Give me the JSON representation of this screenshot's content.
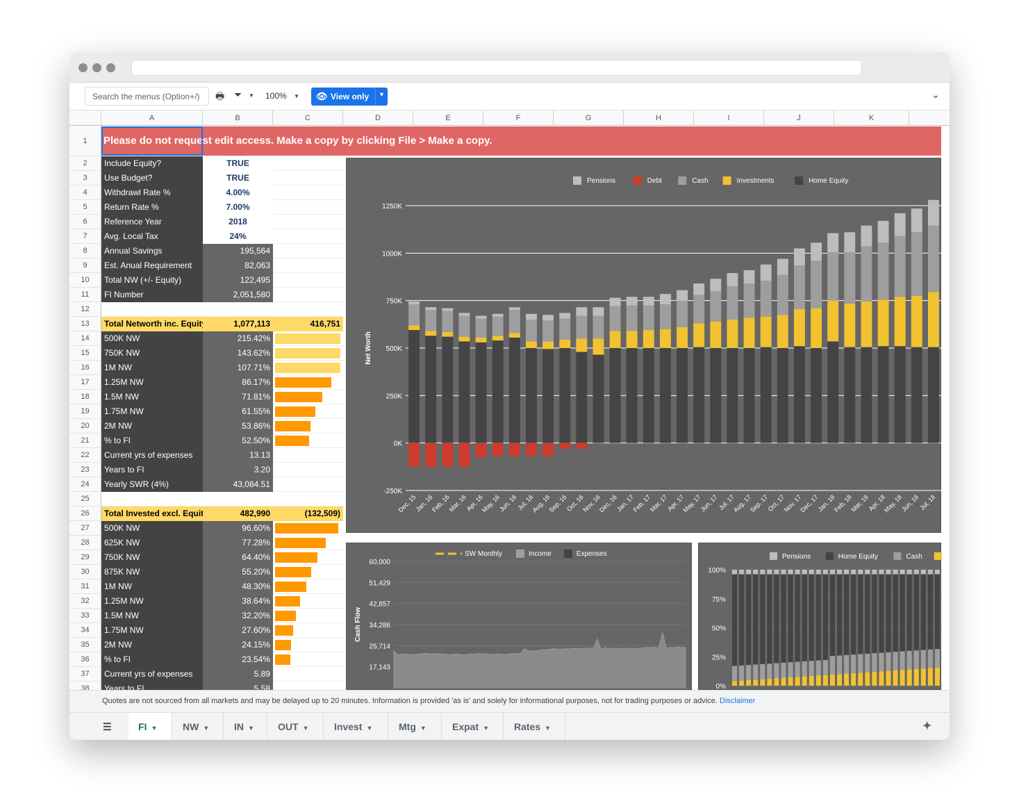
{
  "toolbar": {
    "search_placeholder": "Search the menus (Option+/)",
    "zoom": "100%",
    "view_only": "View only"
  },
  "columns": [
    "A",
    "B",
    "C",
    "D",
    "E",
    "F",
    "G",
    "H",
    "I",
    "J",
    "K"
  ],
  "banner": "Please do not request edit access. Make a copy by clicking File > Make a copy.",
  "rows": [
    {
      "n": "1"
    },
    {
      "n": "2",
      "label": "Include Equity?",
      "value": "TRUE"
    },
    {
      "n": "3",
      "label": "Use Budget?",
      "value": "TRUE"
    },
    {
      "n": "4",
      "label": "Withdrawl Rate %",
      "value": "4.00%"
    },
    {
      "n": "5",
      "label": "Return Rate %",
      "value": "7.00%"
    },
    {
      "n": "6",
      "label": "Reference Year",
      "value": "2018"
    },
    {
      "n": "7",
      "label": "Avg. Local Tax",
      "value": "24%"
    },
    {
      "n": "8",
      "label": "Annual Savings",
      "value": "195,564"
    },
    {
      "n": "9",
      "label": "Est. Anual Requirement",
      "value": "82,063"
    },
    {
      "n": "10",
      "label": "Total NW (+/- Equity)",
      "value": "122,495"
    },
    {
      "n": "11",
      "label": "FI Number",
      "value": "2,051,580"
    },
    {
      "n": "12"
    },
    {
      "n": "13",
      "label": "Total Networth inc. Equity",
      "value": "1,077,113",
      "extra": "416,751"
    },
    {
      "n": "14",
      "label": "500K NW",
      "value": "215.42%",
      "pct": 100
    },
    {
      "n": "15",
      "label": "750K NW",
      "value": "143.62%",
      "pct": 100
    },
    {
      "n": "16",
      "label": "1M NW",
      "value": "107.71%",
      "pct": 100
    },
    {
      "n": "17",
      "label": "1.25M NW",
      "value": "86.17%",
      "pct": 86.17
    },
    {
      "n": "18",
      "label": "1.5M NW",
      "value": "71.81%",
      "pct": 71.81
    },
    {
      "n": "19",
      "label": "1.75M NW",
      "value": "61.55%",
      "pct": 61.55
    },
    {
      "n": "20",
      "label": "2M NW",
      "value": "53.86%",
      "pct": 53.86
    },
    {
      "n": "21",
      "label": "% to FI",
      "value": "52.50%",
      "pct": 52.5
    },
    {
      "n": "22",
      "label": "Current yrs of expenses",
      "value": "13.13"
    },
    {
      "n": "23",
      "label": "Years to FI",
      "value": "3.20"
    },
    {
      "n": "24",
      "label": "Yearly SWR (4%)",
      "value": "43,084.51"
    },
    {
      "n": "25"
    },
    {
      "n": "26",
      "label": "Total Invested excl. Equity",
      "value": "482,990",
      "extra": "(132,509)"
    },
    {
      "n": "27",
      "label": "500K NW",
      "value": "96.60%",
      "pct": 96.6
    },
    {
      "n": "28",
      "label": "625K NW",
      "value": "77.28%",
      "pct": 77.28
    },
    {
      "n": "29",
      "label": "750K NW",
      "value": "64.40%",
      "pct": 64.4
    },
    {
      "n": "30",
      "label": "875K NW",
      "value": "55.20%",
      "pct": 55.2
    },
    {
      "n": "31",
      "label": "1M NW",
      "value": "48.30%",
      "pct": 48.3
    },
    {
      "n": "32",
      "label": "1.25M NW",
      "value": "38.64%",
      "pct": 38.64
    },
    {
      "n": "33",
      "label": "1.5M NW",
      "value": "32.20%",
      "pct": 32.2
    },
    {
      "n": "34",
      "label": "1.75M NW",
      "value": "27.60%",
      "pct": 27.6
    },
    {
      "n": "35",
      "label": "2M NW",
      "value": "24.15%",
      "pct": 24.15
    },
    {
      "n": "36",
      "label": "% to FI",
      "value": "23.54%",
      "pct": 23.54
    },
    {
      "n": "37",
      "label": "Current yrs of expenses",
      "value": "5.89"
    },
    {
      "n": "38",
      "label": "Years to FI",
      "value": "5.58"
    }
  ],
  "colors": {
    "banner": "#e06666",
    "dark_cell": "#434343",
    "mid_cell": "#666666",
    "highlight": "#ffd966",
    "bar_light": "#ffd966",
    "bar_orange": "#ff9900",
    "pensions": "#bdbdbd",
    "debt": "#cc3b2b",
    "cash": "#9e9e9e",
    "investments": "#f1c232",
    "home_equity": "#444444"
  },
  "chart_data": [
    {
      "type": "bar",
      "stacked": true,
      "title": "",
      "ylabel": "Net Worth",
      "ylim": [
        -250000,
        1250000
      ],
      "yticks": [
        "-250K",
        "0K",
        "250K",
        "500K",
        "750K",
        "1000K",
        "1250K"
      ],
      "legend_position": "top",
      "categories": [
        "Dec, 15",
        "Jan, 16",
        "Feb, 16",
        "Mar, 16",
        "Apr, 16",
        "May, 16",
        "Jun, 16",
        "Jul, 16",
        "Aug, 16",
        "Sep, 16",
        "Oct, 16",
        "Nov, 16",
        "Dec, 16",
        "Jan, 17",
        "Feb, 17",
        "Mar, 17",
        "Apr, 17",
        "May, 17",
        "Jun, 17",
        "Jul, 17",
        "Aug, 17",
        "Sep, 17",
        "Oct, 17",
        "Nov, 17",
        "Dec, 17",
        "Jan, 18",
        "Feb, 18",
        "Mar, 18",
        "Apr, 18",
        "May, 18",
        "Jun, 18",
        "Jul, 18"
      ],
      "series": [
        {
          "name": "Home Equity",
          "values": [
            595000,
            565000,
            560000,
            535000,
            530000,
            540000,
            555000,
            500000,
            495000,
            500000,
            480000,
            465000,
            500000,
            500000,
            500000,
            500000,
            500000,
            505000,
            500000,
            500000,
            500000,
            505000,
            500000,
            510000,
            500000,
            535000,
            505000,
            505000,
            510000,
            510000,
            505000,
            505000
          ]
        },
        {
          "name": "Investments",
          "values": [
            25000,
            25000,
            25000,
            25000,
            25000,
            25000,
            25000,
            35000,
            40000,
            45000,
            70000,
            85000,
            90000,
            90000,
            95000,
            100000,
            110000,
            125000,
            140000,
            150000,
            160000,
            160000,
            175000,
            195000,
            210000,
            215000,
            230000,
            240000,
            245000,
            260000,
            270000,
            290000
          ]
        },
        {
          "name": "Cash",
          "values": [
            110000,
            110000,
            110000,
            110000,
            100000,
            100000,
            120000,
            115000,
            110000,
            110000,
            120000,
            120000,
            130000,
            135000,
            130000,
            130000,
            140000,
            150000,
            160000,
            175000,
            180000,
            190000,
            210000,
            230000,
            250000,
            255000,
            270000,
            290000,
            300000,
            320000,
            335000,
            350000
          ]
        },
        {
          "name": "Pensions",
          "values": [
            15000,
            15000,
            15000,
            15000,
            15000,
            15000,
            15000,
            30000,
            30000,
            30000,
            45000,
            45000,
            45000,
            45000,
            45000,
            55000,
            55000,
            60000,
            65000,
            70000,
            70000,
            85000,
            85000,
            90000,
            95000,
            100000,
            105000,
            110000,
            115000,
            120000,
            125000,
            135000
          ]
        },
        {
          "name": "Debt",
          "values": [
            -125000,
            -125000,
            -125000,
            -125000,
            -75000,
            -70000,
            -70000,
            -70000,
            -70000,
            -30000,
            -30000,
            0,
            0,
            0,
            0,
            0,
            0,
            0,
            0,
            0,
            0,
            0,
            0,
            0,
            0,
            0,
            0,
            0,
            0,
            0,
            0,
            0
          ]
        }
      ]
    },
    {
      "type": "area",
      "title": "",
      "ylabel": "Cash Flow",
      "ylim": [
        8571,
        60000
      ],
      "yticks": [
        "60,000",
        "51,429",
        "42,857",
        "34,286",
        "25,714",
        "17,143"
      ],
      "legend": [
        "SW Monthly",
        "Income",
        "Expenses"
      ],
      "series": [
        {
          "name": "Expenses",
          "values": [
            23500,
            22000,
            22200,
            22400,
            22100,
            22000,
            22200,
            22300,
            22600,
            22400,
            22300,
            22500,
            22400,
            22200,
            22100,
            22000,
            22300,
            22200,
            22000,
            22100,
            22300,
            22200,
            22500,
            22400,
            22300,
            22200,
            22100,
            22400,
            22200,
            22100,
            22300,
            22500,
            22400,
            22600,
            24400,
            23600,
            23500,
            23600,
            23800,
            24200,
            24000,
            24300,
            24500,
            24200,
            24400,
            24500,
            24300,
            24600,
            24400,
            24500,
            24700,
            24600,
            24800,
            28400,
            24200,
            24900,
            24500,
            24600,
            24700,
            24500,
            24400,
            24800,
            24600,
            24500,
            24700,
            24800,
            25000,
            24900,
            25100,
            24800,
            31000,
            24700,
            25000,
            24900,
            25100,
            25000,
            25000
          ]
        }
      ]
    },
    {
      "type": "bar",
      "stacked": true,
      "percent": true,
      "title": "",
      "yticks": [
        "100%",
        "75%",
        "50%",
        "25%",
        "0%"
      ],
      "legend": [
        "Pensions",
        "Home Equity",
        "Cash"
      ],
      "series_note": "stacked 100% composition per month"
    }
  ],
  "footer": {
    "note": "Quotes are not sourced from all markets and may be delayed up to 20 minutes. Information is provided 'as is' and solely for informational purposes, not for trading purposes or advice.",
    "link": "Disclaimer"
  },
  "tabs": [
    "FI",
    "NW",
    "IN",
    "OUT",
    "Invest",
    "Mtg",
    "Expat",
    "Rates"
  ],
  "active_tab": "FI"
}
